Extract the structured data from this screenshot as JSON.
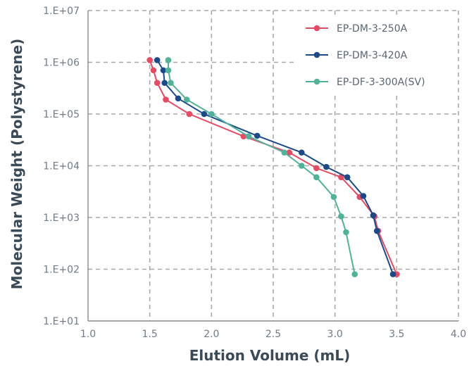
{
  "chart_data": {
    "type": "line",
    "xlabel": "Elution Volume (mL)",
    "ylabel": "Molecular Weight (Polystyrene)",
    "xlim": [
      1.0,
      4.0
    ],
    "ylim_log10": [
      1,
      7
    ],
    "y_scale": "log",
    "grid": true,
    "grid_style": "dashed",
    "legend_position": "top-right",
    "x_tick_labels": [
      "1.0",
      "1.5",
      "2.0",
      "2.5",
      "3.0",
      "3.5",
      "4.0"
    ],
    "y_tick_labels": [
      "1.E+01",
      "1.E+02",
      "1.E+03",
      "1.E+04",
      "1.E+05",
      "1.E+06",
      "1.E+07"
    ],
    "series": [
      {
        "name": "EP-DM-3-250A",
        "color": "#e84a64",
        "points": [
          {
            "x": 1.5,
            "y": 1100000
          },
          {
            "x": 1.53,
            "y": 700000
          },
          {
            "x": 1.56,
            "y": 400000
          },
          {
            "x": 1.63,
            "y": 190000
          },
          {
            "x": 1.82,
            "y": 100000
          },
          {
            "x": 2.26,
            "y": 37000
          },
          {
            "x": 2.63,
            "y": 18000
          },
          {
            "x": 2.85,
            "y": 9000
          },
          {
            "x": 3.05,
            "y": 6000
          },
          {
            "x": 3.2,
            "y": 2500
          },
          {
            "x": 3.32,
            "y": 1050
          },
          {
            "x": 3.35,
            "y": 550
          },
          {
            "x": 3.5,
            "y": 80
          }
        ]
      },
      {
        "name": "EP-DM-3-420A",
        "color": "#1a4a8a",
        "points": [
          {
            "x": 1.56,
            "y": 1100000
          },
          {
            "x": 1.61,
            "y": 700000
          },
          {
            "x": 1.62,
            "y": 400000
          },
          {
            "x": 1.73,
            "y": 200000
          },
          {
            "x": 1.94,
            "y": 100000
          },
          {
            "x": 2.37,
            "y": 38000
          },
          {
            "x": 2.73,
            "y": 18000
          },
          {
            "x": 2.93,
            "y": 9500
          },
          {
            "x": 3.1,
            "y": 6000
          },
          {
            "x": 3.23,
            "y": 2600
          },
          {
            "x": 3.31,
            "y": 1100
          },
          {
            "x": 3.34,
            "y": 550
          },
          {
            "x": 3.47,
            "y": 80
          }
        ]
      },
      {
        "name": "EP-DF-3-300A(SV)",
        "color": "#4fb39a",
        "points": [
          {
            "x": 1.65,
            "y": 1100000
          },
          {
            "x": 1.65,
            "y": 700000
          },
          {
            "x": 1.67,
            "y": 400000
          },
          {
            "x": 1.8,
            "y": 190000
          },
          {
            "x": 2.0,
            "y": 100000
          },
          {
            "x": 2.3,
            "y": 37000
          },
          {
            "x": 2.59,
            "y": 18000
          },
          {
            "x": 2.73,
            "y": 10000
          },
          {
            "x": 2.85,
            "y": 6000
          },
          {
            "x": 2.99,
            "y": 2500
          },
          {
            "x": 3.05,
            "y": 1050
          },
          {
            "x": 3.09,
            "y": 520
          },
          {
            "x": 3.16,
            "y": 80
          }
        ]
      }
    ]
  }
}
